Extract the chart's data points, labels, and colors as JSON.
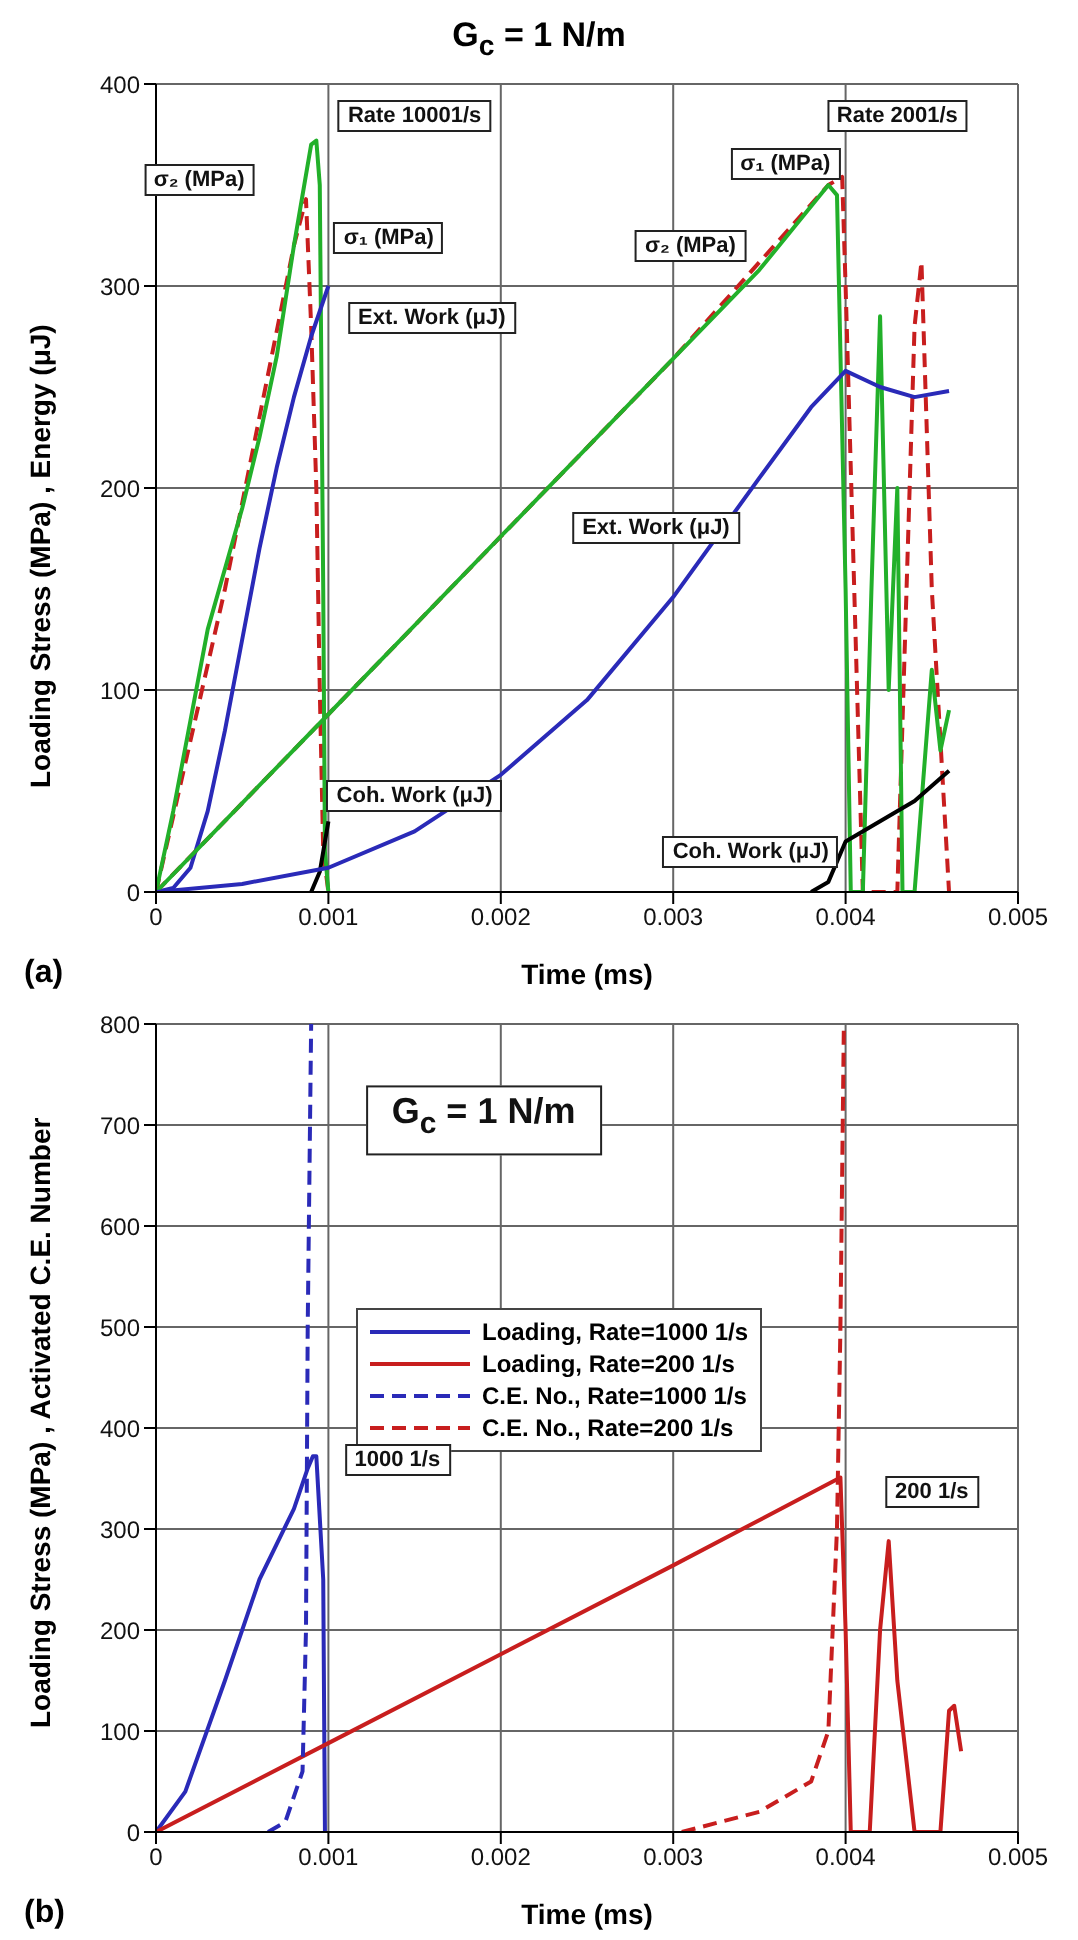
{
  "chart_data": [
    {
      "type": "line",
      "title": "G$_{c}$ = 1 N/m",
      "xlabel": "Time (ms)",
      "ylabel": "Loading Stress (MPa)  ,  Energy (μJ)",
      "xlim": [
        0,
        0.005
      ],
      "xticks": [
        0,
        0.001,
        0.002,
        0.003,
        0.004,
        0.005
      ],
      "ylim": [
        0,
        400
      ],
      "yticks": [
        0,
        100,
        200,
        300,
        400
      ],
      "grid": true,
      "legend": false,
      "series": [
        {
          "color": "#c81e1e",
          "line_style": "dashed",
          "x": [
            0,
            0.0004,
            0.0008,
            0.00087,
            0.0009,
            0.00093,
            0.00095,
            0.00097,
            0.001
          ],
          "values": [
            0,
            150,
            320,
            343,
            280,
            200,
            100,
            20,
            0
          ]
        },
        {
          "color": "#22b02a",
          "line_style": "solid",
          "x": [
            0,
            0.0001,
            0.0002,
            0.0003,
            0.0004,
            0.0005,
            0.0006,
            0.0007,
            0.0008,
            0.00087,
            0.0009,
            0.00093,
            0.00095,
            0.00097,
            0.00098,
            0.001
          ],
          "values": [
            0,
            40,
            85,
            130,
            160,
            190,
            225,
            265,
            320,
            355,
            370,
            372,
            350,
            150,
            20,
            0
          ]
        },
        {
          "color": "#2a2ab8",
          "line_style": "solid",
          "x": [
            0,
            0.0001,
            0.0002,
            0.0003,
            0.0004,
            0.0005,
            0.0006,
            0.0007,
            0.0008,
            0.0009,
            0.001
          ],
          "values": [
            0,
            2,
            12,
            40,
            80,
            125,
            170,
            210,
            245,
            275,
            300
          ]
        },
        {
          "color": "#000000",
          "line_style": "solid",
          "x": [
            0.0009,
            0.00095,
            0.001
          ],
          "values": [
            0,
            10,
            35
          ]
        },
        {
          "color": "#c81e1e",
          "line_style": "dashed",
          "x": [
            0,
            0.001,
            0.002,
            0.003,
            0.0039,
            0.00398,
            0.004,
            0.0041,
            0.0043,
            0.0044,
            0.00444,
            0.0045,
            0.0046
          ],
          "values": [
            0,
            88,
            176,
            264,
            350,
            354,
            300,
            0,
            0,
            280,
            312,
            150,
            0
          ]
        },
        {
          "color": "#22b02a",
          "line_style": "solid",
          "x": [
            0,
            0.0005,
            0.001,
            0.0015,
            0.002,
            0.0025,
            0.003,
            0.0035,
            0.0039,
            0.00395,
            0.004,
            0.00403,
            0.0041,
            0.00415,
            0.0042,
            0.00425,
            0.0043,
            0.00433,
            0.0044,
            0.0045,
            0.00455,
            0.0046
          ],
          "values": [
            0,
            44,
            88,
            132,
            176,
            220,
            264,
            308,
            350,
            345,
            150,
            0,
            0,
            150,
            285,
            100,
            200,
            0,
            0,
            110,
            70,
            90
          ]
        },
        {
          "color": "#2a2ab8",
          "line_style": "solid",
          "x": [
            0,
            0.0005,
            0.001,
            0.0015,
            0.002,
            0.0025,
            0.003,
            0.0035,
            0.0038,
            0.004,
            0.0042,
            0.0044,
            0.0046
          ],
          "values": [
            0,
            4,
            12,
            30,
            58,
            95,
            146,
            205,
            240,
            258,
            250,
            245,
            248
          ]
        },
        {
          "color": "#000000",
          "line_style": "solid",
          "x": [
            0.0038,
            0.0039,
            0.004,
            0.0042,
            0.0044,
            0.0046
          ],
          "values": [
            0,
            5,
            25,
            35,
            45,
            60
          ]
        }
      ],
      "annotations": [
        "Rate 10001/s",
        "Rate 2001/s",
        "σ₂ (MPa)",
        "σ₁ (MPa)",
        "Ext. Work (μJ)",
        "σ₁ (MPa)",
        "σ₂ (MPa)",
        "Ext. Work (μJ)",
        "Coh. Work (μJ)",
        "Coh. Work (μJ)",
        "(a)"
      ]
    },
    {
      "type": "line",
      "xlabel": "Time (ms)",
      "ylabel": "Loading Stress (MPa)  ,  Activated C.E. Number",
      "xlim": [
        0,
        0.005
      ],
      "xticks": [
        0,
        0.001,
        0.002,
        0.003,
        0.004,
        0.005
      ],
      "ylim": [
        0,
        800
      ],
      "yticks": [
        0,
        100,
        200,
        300,
        400,
        500,
        600,
        700,
        800
      ],
      "grid": true,
      "legend": "top",
      "series": [
        {
          "name": "Loading, Rate=1000 1/s",
          "color": "#2a2ab8",
          "line_style": "solid",
          "x": [
            0,
            0.00017,
            0.0004,
            0.0006,
            0.0008,
            0.00088,
            0.00091,
            0.00093,
            0.00097,
            0.00098
          ],
          "values": [
            0,
            40,
            150,
            250,
            320,
            360,
            372,
            372,
            250,
            0
          ]
        },
        {
          "name": "Loading, Rate=200 1/s",
          "color": "#c81e1e",
          "line_style": "solid",
          "x": [
            0,
            0.001,
            0.002,
            0.003,
            0.00397,
            0.004,
            0.00403,
            0.00414,
            0.0042,
            0.00425,
            0.0043,
            0.0044,
            0.00455,
            0.0046,
            0.00463,
            0.00467
          ],
          "values": [
            0,
            88,
            176,
            264,
            351,
            200,
            0,
            0,
            200,
            288,
            150,
            0,
            0,
            120,
            125,
            80
          ]
        },
        {
          "name": "C.E. No., Rate=1000 1/s",
          "color": "#2a2ab8",
          "line_style": "dashed",
          "x": [
            0.00065,
            0.00075,
            0.00085,
            0.00087,
            0.00088,
            0.00089,
            0.0009
          ],
          "values": [
            0,
            10,
            60,
            200,
            500,
            650,
            800
          ]
        },
        {
          "name": "C.E. No., Rate=200 1/s",
          "color": "#c81e1e",
          "line_style": "dashed",
          "x": [
            0.00305,
            0.0035,
            0.0038,
            0.0039,
            0.00395,
            0.00397,
            0.00399
          ],
          "values": [
            0,
            20,
            50,
            100,
            300,
            500,
            800
          ]
        }
      ],
      "annotations": [
        "G$_{c}$ = 1 N/m",
        "1000 1/s",
        "200 1/s",
        "(b)"
      ]
    }
  ]
}
